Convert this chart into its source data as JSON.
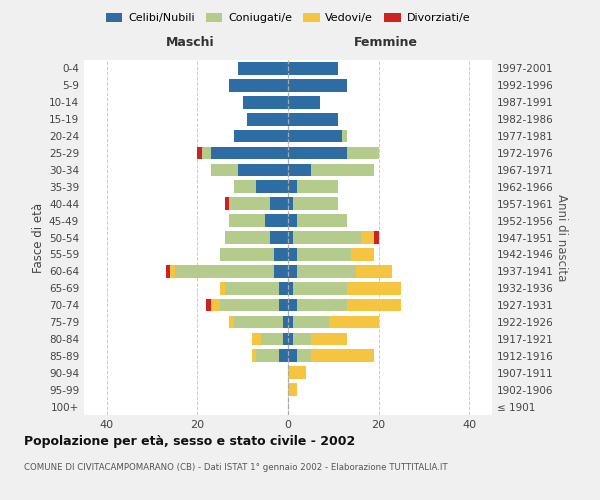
{
  "age_groups": [
    "100+",
    "95-99",
    "90-94",
    "85-89",
    "80-84",
    "75-79",
    "70-74",
    "65-69",
    "60-64",
    "55-59",
    "50-54",
    "45-49",
    "40-44",
    "35-39",
    "30-34",
    "25-29",
    "20-24",
    "15-19",
    "10-14",
    "5-9",
    "0-4"
  ],
  "birth_years": [
    "≤ 1901",
    "1902-1906",
    "1907-1911",
    "1912-1916",
    "1917-1921",
    "1922-1926",
    "1927-1931",
    "1932-1936",
    "1937-1941",
    "1942-1946",
    "1947-1951",
    "1952-1956",
    "1957-1961",
    "1962-1966",
    "1967-1971",
    "1972-1976",
    "1977-1981",
    "1982-1986",
    "1987-1991",
    "1992-1996",
    "1997-2001"
  ],
  "males_celibi": [
    0,
    0,
    0,
    2,
    1,
    1,
    2,
    2,
    3,
    3,
    4,
    5,
    4,
    7,
    11,
    17,
    12,
    9,
    10,
    13,
    11
  ],
  "males_coniugati": [
    0,
    0,
    0,
    5,
    5,
    11,
    13,
    12,
    22,
    12,
    10,
    8,
    9,
    5,
    6,
    2,
    0,
    0,
    0,
    0,
    0
  ],
  "males_vedovi": [
    0,
    0,
    0,
    1,
    2,
    1,
    2,
    1,
    1,
    0,
    0,
    0,
    0,
    0,
    0,
    0,
    0,
    0,
    0,
    0,
    0
  ],
  "males_divorziati": [
    0,
    0,
    0,
    0,
    0,
    0,
    1,
    0,
    1,
    0,
    0,
    0,
    1,
    0,
    0,
    1,
    0,
    0,
    0,
    0,
    0
  ],
  "females_nubili": [
    0,
    0,
    0,
    2,
    1,
    1,
    2,
    1,
    2,
    2,
    1,
    2,
    1,
    2,
    5,
    13,
    12,
    11,
    7,
    13,
    11
  ],
  "females_coniugate": [
    0,
    0,
    0,
    3,
    4,
    8,
    11,
    12,
    13,
    12,
    15,
    11,
    10,
    9,
    14,
    7,
    1,
    0,
    0,
    0,
    0
  ],
  "females_vedove": [
    0,
    2,
    4,
    14,
    8,
    11,
    12,
    12,
    8,
    5,
    3,
    0,
    0,
    0,
    0,
    0,
    0,
    0,
    0,
    0,
    0
  ],
  "females_divorziate": [
    0,
    0,
    0,
    0,
    0,
    0,
    0,
    0,
    0,
    0,
    1,
    0,
    0,
    0,
    0,
    0,
    0,
    0,
    0,
    0,
    0
  ],
  "color_celibi": "#2e6da4",
  "color_coniugati": "#b5cb8b",
  "color_vedovi": "#f5c542",
  "color_divorziati": "#cc2222",
  "xlim": 45,
  "xticks": [
    -40,
    -20,
    0,
    20,
    40
  ],
  "title": "Popolazione per età, sesso e stato civile - 2002",
  "subtitle": "COMUNE DI CIVITACAMPOMARANO (CB) - Dati ISTAT 1° gennaio 2002 - Elaborazione TUTTITALIA.IT",
  "legend_labels": [
    "Celibi/Nubili",
    "Coniugati/e",
    "Vedovi/e",
    "Divorziati/e"
  ],
  "bg_color": "#f0f0f0",
  "plot_bg": "#ffffff",
  "label_maschi": "Maschi",
  "label_femmine": "Femmine",
  "ylabel_left": "Fasce di età",
  "ylabel_right": "Anni di nascita"
}
